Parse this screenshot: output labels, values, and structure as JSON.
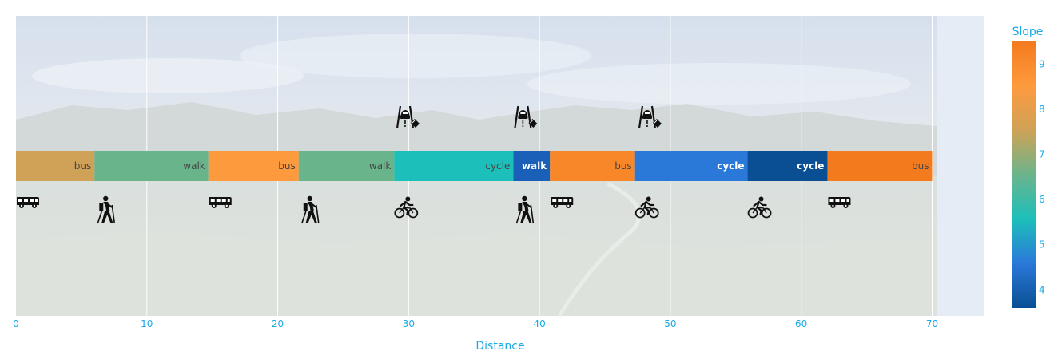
{
  "chart_data": {
    "type": "bar",
    "orientation": "horizontal",
    "stacked": true,
    "xlabel": "Distance",
    "xlim": [
      0,
      74
    ],
    "xticks": [
      0,
      10,
      20,
      30,
      40,
      50,
      60,
      70
    ],
    "grid": true,
    "background": "mountain-landscape-photo",
    "segments": [
      {
        "mode": "bus",
        "start": 0,
        "length": 6.0,
        "slope": 7.8,
        "color": "#cfa257",
        "label_color": "#444444",
        "bold": false
      },
      {
        "mode": "walk",
        "start": 6.0,
        "length": 8.7,
        "slope": 7.0,
        "color": "#6ab48c",
        "label_color": "#444444",
        "bold": false
      },
      {
        "mode": "bus",
        "start": 14.7,
        "length": 6.9,
        "slope": 8.4,
        "color": "#fe9a3e",
        "label_color": "#444444",
        "bold": false
      },
      {
        "mode": "walk",
        "start": 21.6,
        "length": 7.3,
        "slope": 7.0,
        "color": "#6ab48c",
        "label_color": "#444444",
        "bold": false
      },
      {
        "mode": "cycle",
        "start": 28.9,
        "length": 9.1,
        "slope": 6.4,
        "color": "#1dbfbb",
        "label_color": "#444444",
        "bold": false
      },
      {
        "mode": "walk",
        "start": 38.0,
        "length": 2.8,
        "slope": 4.3,
        "color": "#1a5fb8",
        "label_color": "#ffffff",
        "bold": true
      },
      {
        "mode": "bus",
        "start": 40.8,
        "length": 6.5,
        "slope": 9.0,
        "color": "#f8872a",
        "label_color": "#444444",
        "bold": false
      },
      {
        "mode": "cycle",
        "start": 47.3,
        "length": 8.6,
        "slope": 5.0,
        "color": "#2a79d8",
        "label_color": "#ffffff",
        "bold": true
      },
      {
        "mode": "cycle",
        "start": 55.9,
        "length": 6.1,
        "slope": 3.9,
        "color": "#0a4f94",
        "label_color": "#ffffff",
        "bold": true
      },
      {
        "mode": "bus",
        "start": 62.0,
        "length": 8.0,
        "slope": 9.3,
        "color": "#f47a1e",
        "label_color": "#444444",
        "bold": false
      }
    ],
    "mode_icons": [
      {
        "icon": "bus-icon",
        "x": 0.0
      },
      {
        "icon": "hiker-icon",
        "x": 6.0
      },
      {
        "icon": "bus-icon",
        "x": 14.7
      },
      {
        "icon": "hiker-icon",
        "x": 21.6
      },
      {
        "icon": "cyclist-icon",
        "x": 28.9
      },
      {
        "icon": "hiker-icon",
        "x": 38.0
      },
      {
        "icon": "bus-icon",
        "x": 40.8
      },
      {
        "icon": "cyclist-icon",
        "x": 47.3
      },
      {
        "icon": "cyclist-icon",
        "x": 55.9
      },
      {
        "icon": "bus-icon",
        "x": 62.0
      }
    ],
    "hazard_icons": [
      {
        "icon": "slippery-road-icon",
        "x": 29.0
      },
      {
        "icon": "slippery-road-icon",
        "x": 38.0
      },
      {
        "icon": "slippery-road-icon",
        "x": 47.5
      }
    ],
    "colorbar": {
      "title": "Slope",
      "range": [
        3.6,
        9.5
      ],
      "ticks": [
        4,
        5,
        6,
        7,
        8,
        9
      ],
      "colorscale": [
        "#0a4f94",
        "#2a79d8",
        "#1dbfbb",
        "#6ab48c",
        "#cfa257",
        "#fe9a3e",
        "#f47a1e"
      ]
    }
  }
}
